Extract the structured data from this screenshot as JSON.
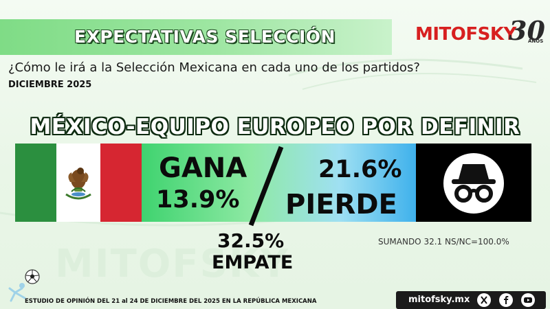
{
  "header": {
    "title": "EXPECTATIVAS SELECCIÓN",
    "brand_name": "MITOFSKY",
    "brand_anniversary_number": "30",
    "brand_anniversary_word": "AÑOS"
  },
  "question": "¿Cómo le irá a la Selección Mexicana en cada uno de los partidos?",
  "date_label": "DICIEMBRE 2025",
  "match": {
    "title": "MÉXICO-EQUIPO EUROPEO POR DEFINIR",
    "home_flag_icon": "mexico-flag-icon",
    "opponent_icon": "incognito-icon",
    "win_label": "GANA",
    "win_pct": "13.9%",
    "lose_pct": "21.6%",
    "lose_label": "PIERDE",
    "draw_pct": "32.5%",
    "draw_label": "EMPATE",
    "sum_note": "SUMANDO 32.1 NS/NC=100.0%"
  },
  "watermark": "MITOFSKY",
  "footer": {
    "study_text": "ESTUDIO DE OPINIÓN DEL 21 al 24 DE DICIEMBRE DEL 2025 EN LA REPÚBLICA MEXICANA",
    "site": "mitofsky.mx",
    "social_icons": [
      "x-icon",
      "facebook-icon",
      "youtube-icon"
    ]
  },
  "colors": {
    "brand_red": "#d72020",
    "flag_green": "#2b8f3f",
    "flag_red": "#d62631",
    "header_green": "#7fdc86"
  }
}
